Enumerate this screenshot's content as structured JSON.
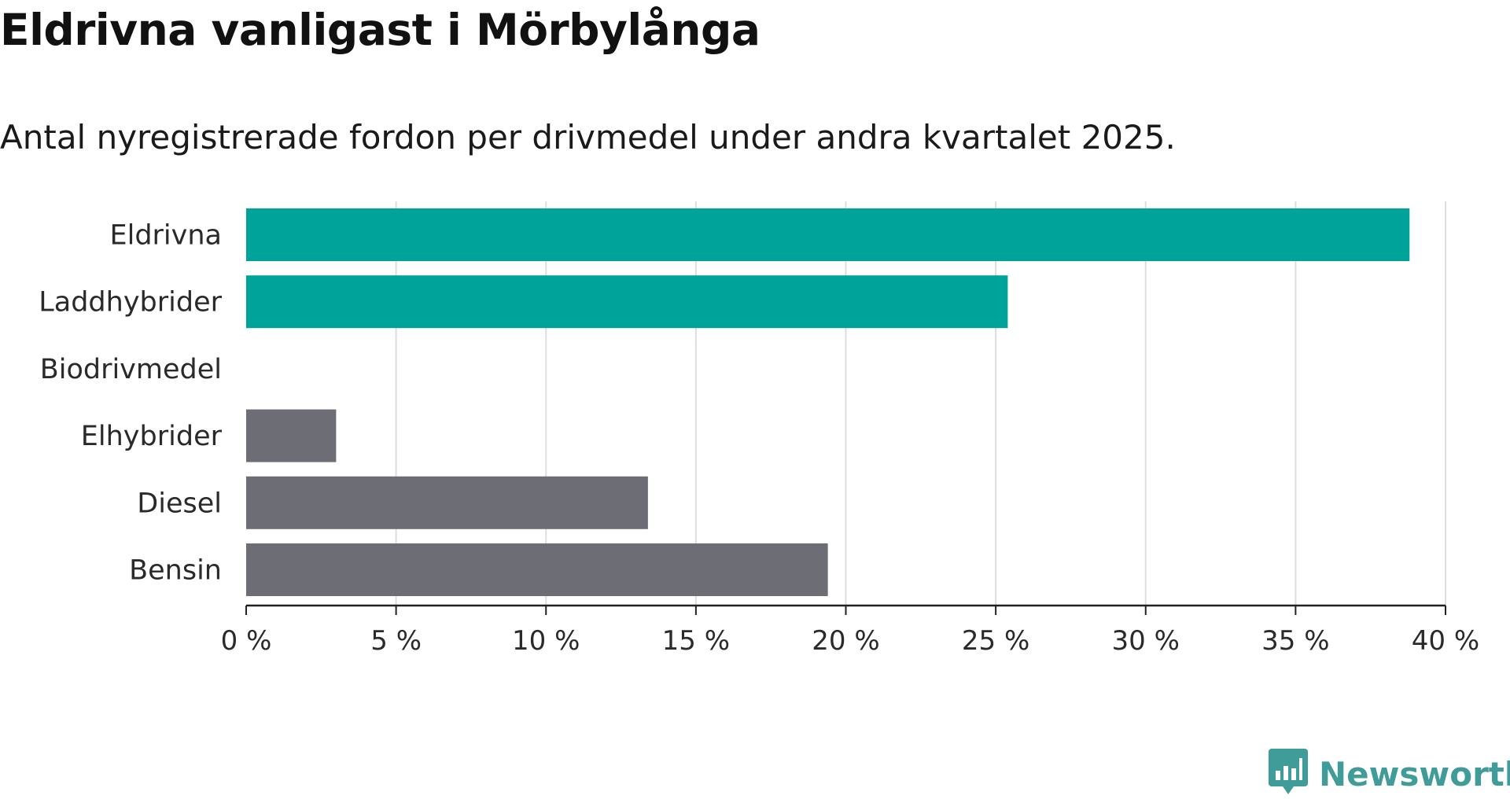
{
  "header": {
    "title": "Eldrivna vanligast i Mörbylånga",
    "subtitle": "Antal nyregistrerade fordon per drivmedel under andra kvartalet 2025."
  },
  "logo": {
    "text": "Newsworthy",
    "icon": "bar-chart-speech-bubble-icon",
    "color": "#3f9c98"
  },
  "chart_data": {
    "type": "bar",
    "orientation": "horizontal",
    "categories": [
      "Eldrivna",
      "Laddhybrider",
      "Biodrivmedel",
      "Elhybrider",
      "Diesel",
      "Bensin"
    ],
    "values": [
      38.8,
      25.4,
      0,
      3.0,
      13.4,
      19.4
    ],
    "colors": [
      "#00a39a",
      "#00a39a",
      "#00a39a",
      "#6d6d75",
      "#6d6d75",
      "#6d6d75"
    ],
    "xlim": [
      0,
      40
    ],
    "xticks": [
      0,
      5,
      10,
      15,
      20,
      25,
      30,
      35,
      40
    ],
    "xtick_labels": [
      "0 %",
      "5 %",
      "10 %",
      "15 %",
      "20 %",
      "25 %",
      "30 %",
      "35 %",
      "40 %"
    ],
    "grid": "vertical",
    "gridline_color": "#dddddd",
    "axis_color": "#222222"
  }
}
